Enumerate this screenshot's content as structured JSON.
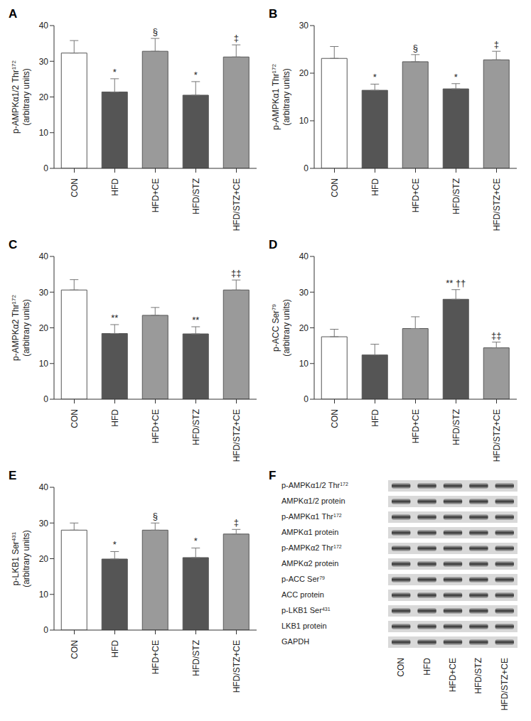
{
  "chart_data": [
    {
      "type": "bar",
      "title": "A",
      "ylabel": {
        "text": "p-AMPKα1/2 Thr",
        "sup": "172",
        "units": "(arbitrary units)"
      },
      "categories": [
        "CON",
        "HFD",
        "HFD+CE",
        "HFD/STZ",
        "HFD/STZ+CE"
      ],
      "values": [
        32.3,
        21.4,
        32.8,
        20.5,
        31.2
      ],
      "errors": [
        3.5,
        3.7,
        3.6,
        3.8,
        3.4
      ],
      "annotations": [
        null,
        "*",
        "§",
        "*",
        "‡"
      ],
      "colors": [
        "#ffffff",
        "#555555",
        "#9a9a9a",
        "#555555",
        "#9a9a9a"
      ],
      "ylim": [
        0,
        40
      ],
      "yticks": [
        0,
        10,
        20,
        30,
        40
      ]
    },
    {
      "type": "bar",
      "title": "B",
      "ylabel": {
        "text": "p-AMPKα1 Thr",
        "sup": "172",
        "units": "(arbitrary units)"
      },
      "categories": [
        "CON",
        "HFD",
        "HFD+CE",
        "HFD/STZ",
        "HFD/STZ+CE"
      ],
      "values": [
        23.1,
        16.4,
        22.4,
        16.7,
        22.8
      ],
      "errors": [
        2.5,
        1.3,
        1.5,
        1.1,
        1.8
      ],
      "annotations": [
        null,
        "*",
        "§",
        "*",
        "‡"
      ],
      "colors": [
        "#ffffff",
        "#555555",
        "#9a9a9a",
        "#555555",
        "#9a9a9a"
      ],
      "ylim": [
        0,
        30
      ],
      "yticks": [
        0,
        10,
        20,
        30
      ]
    },
    {
      "type": "bar",
      "title": "C",
      "ylabel": {
        "text": "p-AMPKα2 Thr",
        "sup": "172",
        "units": "(arbitrary units)"
      },
      "categories": [
        "CON",
        "HFD",
        "HFD+CE",
        "HFD/STZ",
        "HFD/STZ+CE"
      ],
      "values": [
        30.6,
        18.4,
        23.5,
        18.3,
        30.6
      ],
      "errors": [
        2.9,
        2.5,
        2.2,
        2.0,
        2.8
      ],
      "annotations": [
        null,
        "**",
        null,
        "**",
        "‡‡"
      ],
      "colors": [
        "#ffffff",
        "#555555",
        "#9a9a9a",
        "#555555",
        "#9a9a9a"
      ],
      "ylim": [
        0,
        40
      ],
      "yticks": [
        0,
        10,
        20,
        30,
        40
      ]
    },
    {
      "type": "bar",
      "title": "D",
      "ylabel": {
        "text": "p-ACC Ser",
        "sup": "79",
        "units": "(arbitrary units)"
      },
      "categories": [
        "CON",
        "HFD",
        "HFD+CE",
        "HFD/STZ",
        "HFD/STZ+CE"
      ],
      "values": [
        17.5,
        12.4,
        19.8,
        28.0,
        14.4
      ],
      "errors": [
        2.1,
        3.0,
        3.3,
        2.7,
        1.6
      ],
      "annotations": [
        null,
        null,
        null,
        "** ††",
        "‡‡"
      ],
      "colors": [
        "#ffffff",
        "#555555",
        "#9a9a9a",
        "#555555",
        "#9a9a9a"
      ],
      "ylim": [
        0,
        40
      ],
      "yticks": [
        0,
        10,
        20,
        30,
        40
      ]
    },
    {
      "type": "bar",
      "title": "E",
      "ylabel": {
        "text": "p-LKB1 Ser",
        "sup": "431",
        "units": "(arbitrary units)"
      },
      "categories": [
        "CON",
        "HFD",
        "HFD+CE",
        "HFD/STZ",
        "HFD/STZ+CE"
      ],
      "values": [
        28.0,
        19.9,
        28.0,
        20.3,
        26.9
      ],
      "errors": [
        2.0,
        2.1,
        2.0,
        2.7,
        1.3
      ],
      "annotations": [
        null,
        "*",
        "§",
        "*",
        "‡"
      ],
      "colors": [
        "#ffffff",
        "#555555",
        "#9a9a9a",
        "#555555",
        "#9a9a9a"
      ],
      "ylim": [
        0,
        40
      ],
      "yticks": [
        0,
        10,
        20,
        30,
        40
      ]
    }
  ],
  "blot": {
    "title": "F",
    "rows": [
      {
        "text": "p-AMPKα1/2 Thr",
        "sup": "172"
      },
      {
        "text": "AMPKα1/2 protein"
      },
      {
        "text": "p-AMPKα1 Thr",
        "sup": "172"
      },
      {
        "text": "AMPKα1 protein"
      },
      {
        "text": "p-AMPKα2 Thr",
        "sup": "172"
      },
      {
        "text": "AMPKα2 protein"
      },
      {
        "text": "p-ACC Ser",
        "sup": "79"
      },
      {
        "text": "ACC protein"
      },
      {
        "text": "p-LKB1 Ser",
        "sup": "431"
      },
      {
        "text": "LKB1 protein"
      },
      {
        "text": "GAPDH"
      }
    ],
    "lanes": [
      "CON",
      "HFD",
      "HFD+CE",
      "HFD/STZ",
      "HFD/STZ+CE"
    ]
  }
}
